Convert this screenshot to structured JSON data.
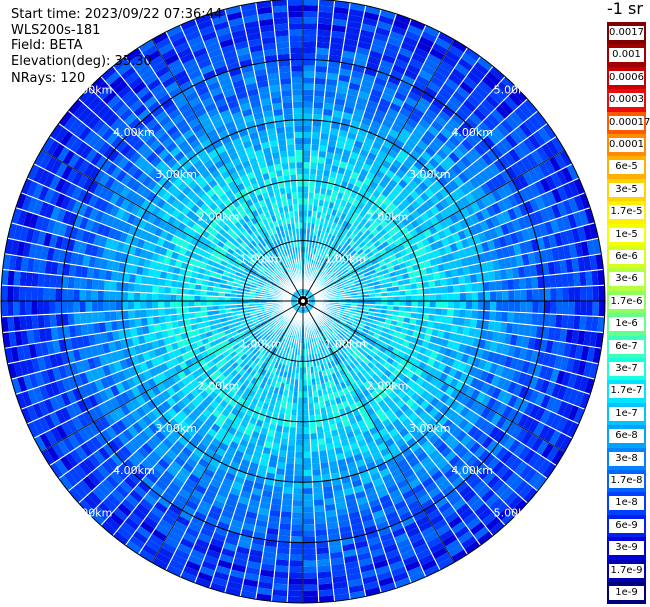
{
  "header": {
    "start_time": "Start time: 2023/09/22 07:36:44",
    "instrument": "WLS200s-181",
    "field": "Field: BETA",
    "elevation": "Elevation(deg): 35.30",
    "nrays": "NRays: 120"
  },
  "colorbar": {
    "unit_label": "-1 sr",
    "labels": [
      "0.0017",
      "0.001",
      "0.0006",
      "0.0003",
      "0.00017",
      "0.0001",
      "6e-5",
      "3e-5",
      "1.7e-5",
      "1e-5",
      "6e-6",
      "3e-6",
      "1.7e-6",
      "1e-6",
      "6e-7",
      "3e-7",
      "1.7e-7",
      "1e-7",
      "6e-8",
      "3e-8",
      "1.7e-8",
      "1e-8",
      "6e-9",
      "3e-9",
      "1.7e-9",
      "1e-9"
    ],
    "colors": [
      "#800000",
      "#a00000",
      "#c80000",
      "#ee0a0a",
      "#ff5a00",
      "#ff8c00",
      "#ffb000",
      "#ffd200",
      "#fff000",
      "#f4ff00",
      "#d8ff1a",
      "#b4ff40",
      "#8cff60",
      "#64ff8c",
      "#3cffbc",
      "#18ffe0",
      "#00e4ff",
      "#00c4ff",
      "#00a4ff",
      "#0084ff",
      "#0064ff",
      "#0040ff",
      "#0020f0",
      "#0000d8",
      "#0000b0",
      "#00007c"
    ]
  },
  "chart_data": {
    "type": "heatmap",
    "projection": "polar PPI",
    "field": "BETA",
    "rays": 120,
    "range_rings_km": [
      1,
      2,
      3,
      4,
      5
    ],
    "range_labels": [
      "1.00km",
      "2.00km",
      "3.00km",
      "4.00km",
      "5.00km"
    ],
    "spoke_angles_deg": [
      0,
      30,
      60,
      90,
      120,
      150,
      180,
      210,
      240,
      270,
      300,
      330
    ],
    "max_range_km": 5.0,
    "color_scale": "log",
    "range_profile": [
      {
        "range_km": 0.3,
        "value": 1e-07
      },
      {
        "range_km": 1.0,
        "value": 1.2e-07
      },
      {
        "range_km": 2.0,
        "value": 2e-07
      },
      {
        "range_km": 3.0,
        "value": 6e-08
      },
      {
        "range_km": 4.0,
        "value": 1.5e-08
      },
      {
        "range_km": 5.0,
        "value": 8e-09
      }
    ]
  }
}
